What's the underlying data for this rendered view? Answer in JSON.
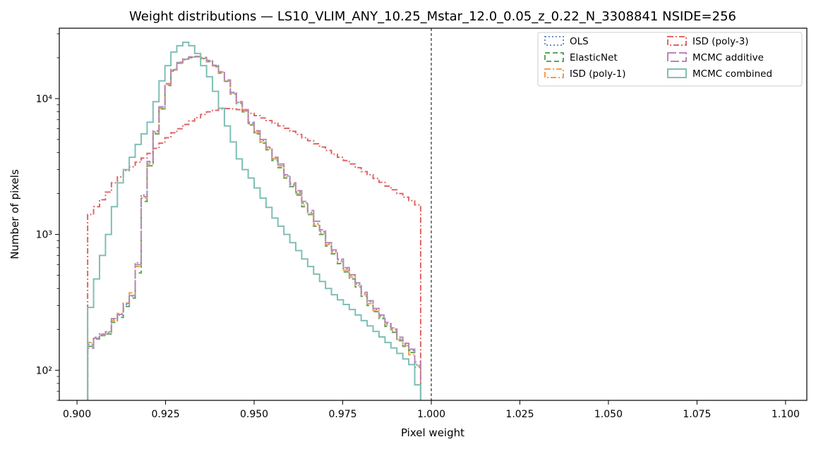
{
  "chart_data": {
    "type": "step-histogram",
    "title": "Weight distributions — LS10_VLIM_ANY_10.25_Mstar_12.0_0.05_z_0.22_N_3308841  NSIDE=256",
    "xlabel": "Pixel weight",
    "ylabel": "Number of pixels",
    "xlim": [
      0.895,
      1.106
    ],
    "ylim": [
      60,
      33000
    ],
    "yscale": "log",
    "grid": false,
    "legend_position": "upper-right",
    "legend_columns": 2,
    "x_ticks": [
      0.9,
      0.925,
      0.95,
      0.975,
      1.0,
      1.025,
      1.05,
      1.075,
      1.1
    ],
    "x_tick_labels": [
      "0.900",
      "0.925",
      "0.950",
      "0.975",
      "1.000",
      "1.025",
      "1.050",
      "1.075",
      "1.100"
    ],
    "y_ticks": [
      100,
      1000,
      10000
    ],
    "y_tick_labels": [
      "10²",
      "10³",
      "10⁴"
    ],
    "reference_line_x": 1.0,
    "series": [
      {
        "name": "OLS",
        "color": "#7090c0",
        "dash": "dotted",
        "bin_start": 0.903,
        "bin_end": 0.997,
        "counts": [
          155,
          175,
          185,
          190,
          235,
          255,
          305,
          350,
          620,
          1950,
          3400,
          5700,
          8600,
          12800,
          16300,
          18400,
          19500,
          20200,
          20400,
          20000,
          19000,
          17500,
          15700,
          13600,
          11000,
          9400,
          8200,
          6600,
          5700,
          4900,
          4300,
          3600,
          3200,
          2700,
          2350,
          2050,
          1700,
          1450,
          1200,
          1050,
          850,
          750,
          650,
          560,
          500,
          430,
          370,
          320,
          280,
          250,
          220,
          200,
          170,
          155,
          140,
          110
        ]
      },
      {
        "name": "ElasticNet",
        "color": "#5aa75a",
        "dash": "dashed",
        "bin_start": 0.903,
        "bin_end": 0.997,
        "counts": [
          150,
          170,
          180,
          185,
          225,
          245,
          295,
          340,
          520,
          1750,
          3200,
          5500,
          8400,
          12500,
          16000,
          18200,
          19400,
          20000,
          20300,
          19700,
          18700,
          17200,
          15400,
          13400,
          10800,
          9200,
          8000,
          6400,
          5500,
          4700,
          4200,
          3500,
          3100,
          2600,
          2250,
          1950,
          1600,
          1400,
          1150,
          1000,
          820,
          720,
          610,
          530,
          470,
          410,
          350,
          300,
          270,
          240,
          210,
          190,
          165,
          150,
          135,
          105
        ]
      },
      {
        "name": "ISD (poly-1)",
        "color": "#f0a050",
        "dash": "dash-dot",
        "bin_start": 0.903,
        "bin_end": 0.997,
        "counts": [
          160,
          172,
          182,
          192,
          232,
          262,
          312,
          372,
          580,
          1850,
          3300,
          5600,
          8500,
          12700,
          16200,
          18300,
          19500,
          20100,
          20300,
          19800,
          18800,
          17400,
          15600,
          13500,
          10900,
          9300,
          8100,
          6500,
          5600,
          4800,
          4300,
          3600,
          3200,
          2650,
          2300,
          2000,
          1650,
          1420,
          1180,
          1020,
          840,
          740,
          630,
          545,
          485,
          420,
          360,
          310,
          275,
          245,
          215,
          195,
          168,
          152,
          130,
          108
        ]
      },
      {
        "name": "ISD (poly-3)",
        "color": "#e06666",
        "dash": "dash-dot",
        "bin_start": 0.903,
        "bin_end": 0.997,
        "counts": [
          1400,
          1600,
          1800,
          2050,
          2400,
          2650,
          2950,
          3150,
          3400,
          3650,
          3950,
          4300,
          4700,
          5150,
          5600,
          6000,
          6450,
          6850,
          7250,
          7650,
          8000,
          8200,
          8400,
          8450,
          8400,
          8300,
          8200,
          7800,
          7500,
          7200,
          6900,
          6600,
          6300,
          6050,
          5750,
          5450,
          5150,
          4900,
          4650,
          4400,
          4150,
          3900,
          3700,
          3500,
          3300,
          3100,
          2900,
          2750,
          2580,
          2420,
          2270,
          2130,
          2000,
          1880,
          1770,
          1650
        ]
      },
      {
        "name": "MCMC additive",
        "color": "#b888b8",
        "dash": "long-dash",
        "bin_start": 0.903,
        "bin_end": 0.997,
        "counts": [
          145,
          172,
          184,
          192,
          240,
          258,
          310,
          355,
          600,
          1900,
          3450,
          5800,
          8700,
          12900,
          16400,
          18500,
          19600,
          20300,
          20500,
          20100,
          19100,
          17600,
          15800,
          13700,
          11100,
          9500,
          8300,
          6700,
          5800,
          5000,
          4400,
          3700,
          3300,
          2750,
          2400,
          2100,
          1750,
          1500,
          1250,
          1080,
          870,
          770,
          660,
          570,
          505,
          440,
          375,
          325,
          285,
          255,
          225,
          205,
          175,
          158,
          143,
          115
        ]
      },
      {
        "name": "MCMC combined",
        "color": "#7fbfb5",
        "dash": "solid",
        "bin_start": 0.903,
        "bin_end": 0.997,
        "counts": [
          290,
          470,
          700,
          1000,
          1600,
          2400,
          3000,
          3700,
          4600,
          5500,
          6700,
          9500,
          13500,
          17500,
          22000,
          24500,
          26000,
          24500,
          21500,
          17500,
          14500,
          11300,
          8500,
          6300,
          4800,
          3600,
          3000,
          2600,
          2200,
          1850,
          1580,
          1320,
          1150,
          1000,
          870,
          760,
          660,
          580,
          510,
          450,
          400,
          360,
          330,
          305,
          280,
          255,
          232,
          212,
          193,
          176,
          160,
          146,
          133,
          121,
          110,
          78
        ]
      }
    ]
  }
}
